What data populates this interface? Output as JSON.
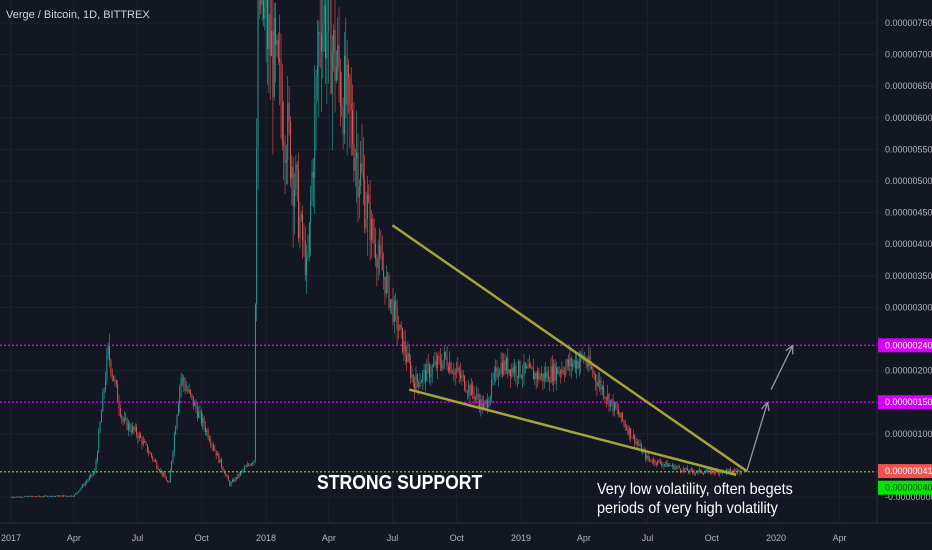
{
  "header": {
    "title": "Verge / Bitcoin, 1D, BITTREX"
  },
  "annotations": {
    "support": "STRONG SUPPORT",
    "volatility_line1": "Very low volatility, often begets",
    "volatility_line2": "periods of very high volatility"
  },
  "colors": {
    "background": "#131722",
    "grid": "#1e222d",
    "up": "#26a69a",
    "down": "#ef5350",
    "wedge": "#a4a43a",
    "resistance": "#d500f9",
    "support": "#7cc62a",
    "arrow": "#9598a1",
    "axis_text": "#b2b5be"
  },
  "chart_data": {
    "type": "candlestick",
    "symbol": "Verge / Bitcoin",
    "interval": "1D",
    "exchange": "BITTREX",
    "x_ticks": [
      "2017",
      "Apr",
      "Jul",
      "Oct",
      "2018",
      "Apr",
      "Jul",
      "Oct",
      "2019",
      "Apr",
      "Jul",
      "Oct",
      "2020",
      "Apr"
    ],
    "y_ticks": [
      "0.00000750",
      "0.00000700",
      "0.00000650",
      "0.00000600",
      "0.00000550",
      "0.00000500",
      "0.00000450",
      "0.00000400",
      "0.00000350",
      "0.00000300",
      "0.00000200",
      "0.00000100",
      "-0.00000000"
    ],
    "ylim": [
      -1e-07,
      7.9e-06
    ],
    "price_path": [
      [
        "2017-01",
        0.0
      ],
      [
        "2017-04",
        2e-08
      ],
      [
        "2017-05",
        4e-07
      ],
      [
        "2017-05-20",
        2.3e-06
      ],
      [
        "2017-06-10",
        1.2e-06
      ],
      [
        "2017-07",
        1e-06
      ],
      [
        "2017-08-15",
        2e-07
      ],
      [
        "2017-09",
        1.9e-06
      ],
      [
        "2017-10-10",
        1e-06
      ],
      [
        "2017-11-10",
        2e-07
      ],
      [
        "2017-12-15",
        6e-07
      ],
      [
        "2017-12-20",
        8e-06
      ],
      [
        "2018-01-10",
        7e-06
      ],
      [
        "2018-02-05",
        5.5e-06
      ],
      [
        "2018-03-01",
        3.5e-06
      ],
      [
        "2018-03-20",
        7.8e-06
      ],
      [
        "2018-05-01",
        6e-06
      ],
      [
        "2018-06-01",
        4.2e-06
      ],
      [
        "2018-07-01",
        3e-06
      ],
      [
        "2018-08-01",
        1.8e-06
      ],
      [
        "2018-09-15",
        2.2e-06
      ],
      [
        "2018-11-10",
        1.4e-06
      ],
      [
        "2018-12-01",
        2.1e-06
      ],
      [
        "2019-02-01",
        1.9e-06
      ],
      [
        "2019-04-01",
        2.2e-06
      ],
      [
        "2019-05-15",
        1.4e-06
      ],
      [
        "2019-07-01",
        6e-07
      ],
      [
        "2019-09-01",
        4e-07
      ],
      [
        "2019-11-01",
        4.1e-07
      ]
    ],
    "levels": [
      {
        "price": 2.4e-06,
        "label": "0.00000240",
        "role": "resistance"
      },
      {
        "price": 1.5e-06,
        "label": "0.00000150",
        "role": "resistance"
      },
      {
        "price": 4.1e-07,
        "label": "0.00000041",
        "role": "current"
      },
      {
        "price": 4e-07,
        "label": "0.00000040",
        "role": "support"
      }
    ],
    "falling_wedge": {
      "upper": [
        [
          "2018-07-01",
          4.3e-06
        ],
        [
          "2019-11-20",
          4.1e-07
        ]
      ],
      "lower": [
        [
          "2018-07-25",
          1.7e-06
        ],
        [
          "2019-11-05",
          3.5e-07
        ]
      ]
    },
    "projection_arrows": [
      [
        [
          "2019-11-20",
          4e-07
        ],
        [
          "2019-12-20",
          1.5e-06
        ]
      ],
      [
        [
          "2019-12-25",
          1.7e-06
        ],
        [
          "2020-01-25",
          2.4e-06
        ]
      ]
    ]
  }
}
